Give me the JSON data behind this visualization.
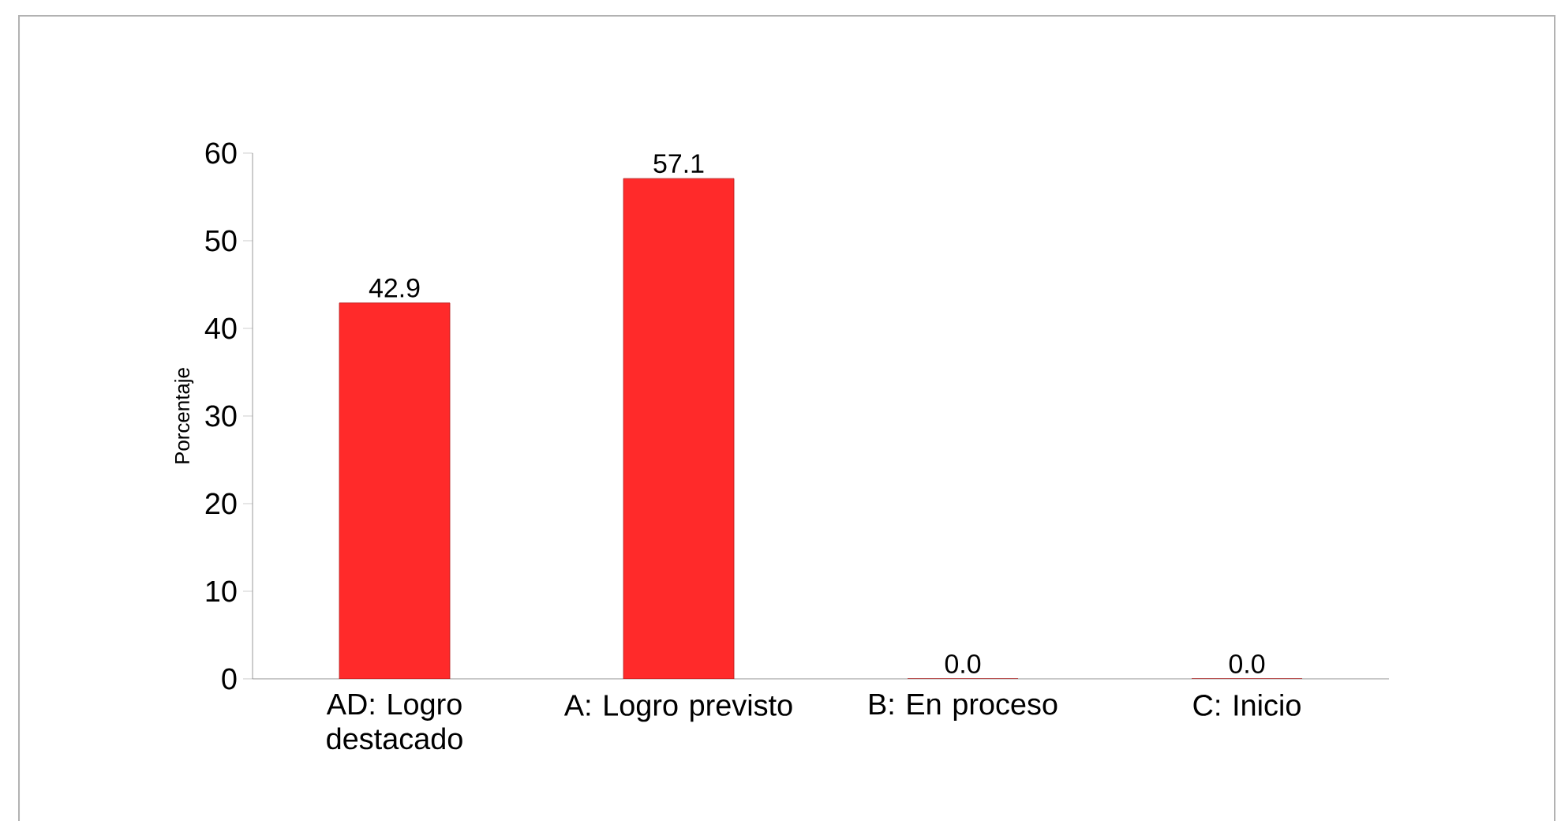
{
  "chart_data": {
    "type": "bar",
    "ylabel": "Porcentaje",
    "categories": [
      "AD: Logro destacado",
      "A: Logro previsto",
      "B: En proceso",
      "C: Inicio"
    ],
    "values": [
      42.9,
      57.1,
      0.0,
      0.0
    ],
    "value_labels": [
      "42.9",
      "57.1",
      "0.0",
      "0.0"
    ],
    "color": "#ff2a2a",
    "ylim": [
      0,
      60
    ],
    "yticks": [
      0,
      10,
      20,
      30,
      40,
      50,
      60
    ]
  }
}
